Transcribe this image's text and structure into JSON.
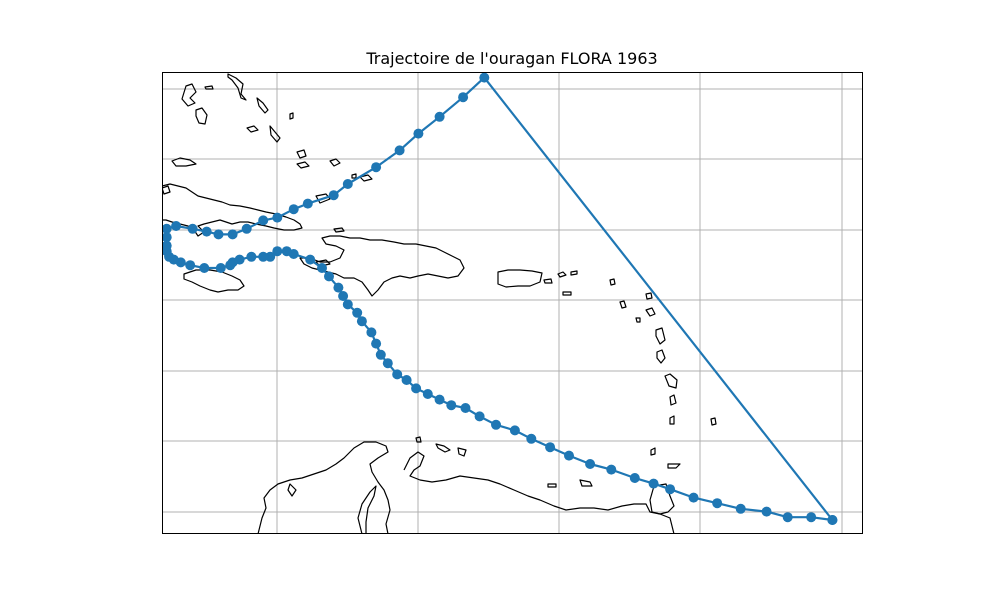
{
  "title": "Trajectoire de l'ouragan FLORA 1963",
  "colors": {
    "track": "#1f77b4",
    "coastline": "#000000",
    "grid": "#b0b0b0",
    "background": "#ffffff"
  },
  "map": {
    "grid": true,
    "lon_range": [
      -88.1,
      -58.3
    ],
    "lat_range": [
      9.7,
      26.2
    ],
    "grid_lons": [
      -83.2,
      -77.2,
      -71.2,
      -65.2,
      -59.2
    ],
    "grid_lats": [
      10.1,
      12.2,
      14.4,
      16.5,
      18.6,
      20.8,
      22.9,
      25.0
    ]
  },
  "chart_data": {
    "type": "scatter",
    "title": "Trajectoire de l'ouragan FLORA 1963",
    "series": [
      {
        "marker": "circle",
        "line": true,
        "points": [
          [
            -59.6,
            10.2
          ],
          [
            -60.5,
            10.3
          ],
          [
            -61.5,
            10.3
          ],
          [
            -62.4,
            10.5
          ],
          [
            -63.5,
            10.6
          ],
          [
            -64.5,
            10.8
          ],
          [
            -65.5,
            11.0
          ],
          [
            -66.5,
            11.3
          ],
          [
            -67.2,
            11.5
          ],
          [
            -68.0,
            11.7
          ],
          [
            -69.0,
            12.0
          ],
          [
            -69.9,
            12.2
          ],
          [
            -70.8,
            12.5
          ],
          [
            -71.6,
            12.8
          ],
          [
            -72.4,
            13.1
          ],
          [
            -73.1,
            13.4
          ],
          [
            -73.9,
            13.6
          ],
          [
            -74.6,
            13.9
          ],
          [
            -75.2,
            14.2
          ],
          [
            -75.8,
            14.3
          ],
          [
            -76.3,
            14.5
          ],
          [
            -76.8,
            14.7
          ],
          [
            -77.3,
            14.9
          ],
          [
            -77.7,
            15.2
          ],
          [
            -78.1,
            15.4
          ],
          [
            -78.5,
            15.8
          ],
          [
            -78.8,
            16.1
          ],
          [
            -79.0,
            16.5
          ],
          [
            -79.2,
            16.9
          ],
          [
            -79.6,
            17.3
          ],
          [
            -79.8,
            17.6
          ],
          [
            -80.2,
            17.9
          ],
          [
            -80.4,
            18.2
          ],
          [
            -80.6,
            18.5
          ],
          [
            -81.0,
            18.9
          ],
          [
            -81.3,
            19.2
          ],
          [
            -81.8,
            19.5
          ],
          [
            -82.5,
            19.7
          ],
          [
            -82.8,
            19.8
          ],
          [
            -83.2,
            19.8
          ],
          [
            -83.5,
            19.6
          ],
          [
            -83.8,
            19.6
          ],
          [
            -84.3,
            19.6
          ],
          [
            -84.8,
            19.5
          ],
          [
            -85.1,
            19.4
          ],
          [
            -85.2,
            19.3
          ],
          [
            -85.6,
            19.2
          ],
          [
            -86.3,
            19.2
          ],
          [
            -86.9,
            19.3
          ],
          [
            -87.3,
            19.4
          ],
          [
            -87.6,
            19.5
          ],
          [
            -87.8,
            19.6
          ],
          [
            -87.9,
            19.8
          ],
          [
            -87.9,
            20.0
          ],
          [
            -87.9,
            20.3
          ],
          [
            -87.9,
            20.6
          ],
          [
            -87.5,
            20.7
          ],
          [
            -86.8,
            20.6
          ],
          [
            -86.2,
            20.5
          ],
          [
            -85.7,
            20.4
          ],
          [
            -85.1,
            20.4
          ],
          [
            -84.5,
            20.6
          ],
          [
            -83.8,
            20.9
          ],
          [
            -83.2,
            21.0
          ],
          [
            -82.5,
            21.3
          ],
          [
            -81.9,
            21.5
          ],
          [
            -80.8,
            21.8
          ],
          [
            -80.2,
            22.2
          ],
          [
            -79.0,
            22.8
          ],
          [
            -78.0,
            23.4
          ],
          [
            -77.2,
            24.0
          ],
          [
            -76.3,
            24.6
          ],
          [
            -75.3,
            25.3
          ],
          [
            -74.4,
            26.0
          ],
          [
            -59.6,
            10.2
          ]
        ]
      }
    ]
  }
}
